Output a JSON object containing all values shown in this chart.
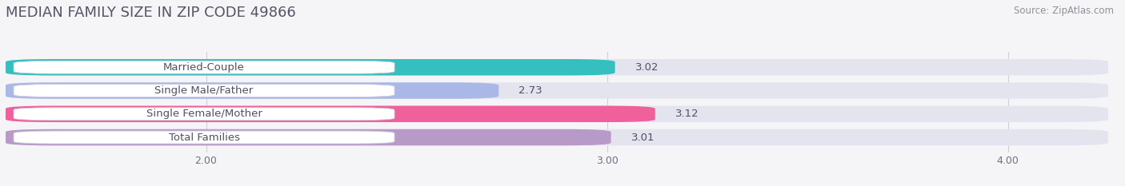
{
  "title": "MEDIAN FAMILY SIZE IN ZIP CODE 49866",
  "source": "Source: ZipAtlas.com",
  "categories": [
    "Married-Couple",
    "Single Male/Father",
    "Single Female/Mother",
    "Total Families"
  ],
  "values": [
    3.02,
    2.73,
    3.12,
    3.01
  ],
  "bar_colors": [
    "#35bfbf",
    "#aab8e8",
    "#f0609a",
    "#b89ac8"
  ],
  "bar_bg_color": "#e4e4ef",
  "xlim_min": 1.5,
  "xlim_max": 4.25,
  "xticks": [
    2.0,
    3.0,
    4.0
  ],
  "xtick_labels": [
    "2.00",
    "3.00",
    "4.00"
  ],
  "bar_height": 0.7,
  "label_fontsize": 9.5,
  "value_fontsize": 9.5,
  "title_fontsize": 13,
  "source_fontsize": 8.5,
  "background_color": "#f5f5f8",
  "grid_color": "#d0d0dc",
  "label_bg_color": "#ffffff",
  "label_text_color": "#505060",
  "title_color": "#555565",
  "source_color": "#909098"
}
